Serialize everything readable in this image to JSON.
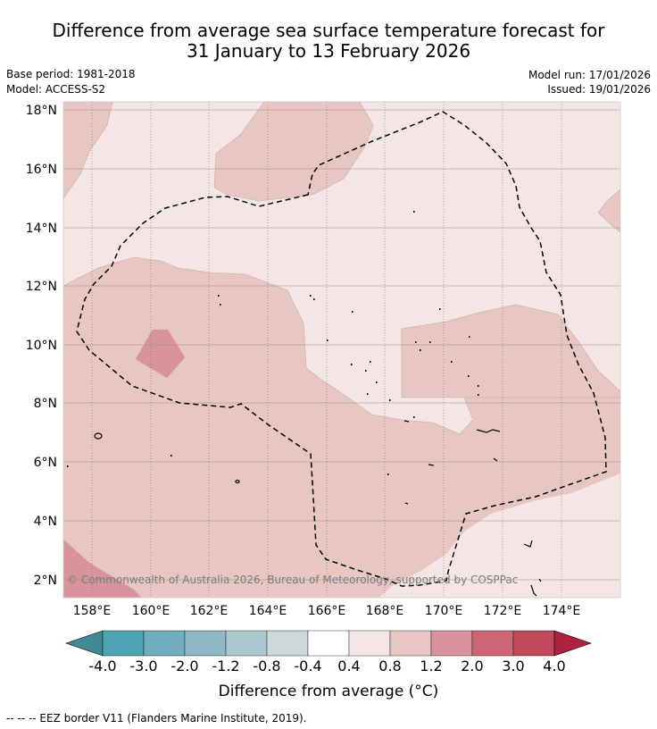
{
  "header": {
    "title_line1": "Difference from average sea surface temperature forecast for",
    "title_line2": "31 January to 13 February 2026",
    "base_period": "Base period: 1981-2018",
    "model": "Model: ACCESS-S2",
    "model_run": "Model run: 17/01/2026",
    "issued": "Issued: 19/01/2026"
  },
  "map": {
    "lat_labels": [
      "18°N",
      "16°N",
      "14°N",
      "12°N",
      "10°N",
      "8°N",
      "6°N",
      "4°N",
      "2°N"
    ],
    "lon_labels": [
      "158°E",
      "160°E",
      "162°E",
      "164°E",
      "166°E",
      "168°E",
      "170°E",
      "172°E",
      "174°E"
    ],
    "copyright": "© Commonwealth of Australia 2026, Bureau of Meteorology, supported by COSPPac",
    "colors": {
      "anom_0_4_0_8": "#f4e6e5",
      "anom_0_8_1_2": "#e8c7c3",
      "anom_1_2_2_0": "#d8949a",
      "eez_line": "#000000"
    }
  },
  "colorbar": {
    "labels": [
      "-4.0",
      "-3.0",
      "-2.0",
      "-1.2",
      "-0.8",
      "-0.4",
      "0.4",
      "0.8",
      "1.2",
      "2.0",
      "3.0",
      "4.0"
    ],
    "colors": [
      "#3e8a95",
      "#4ea3b3",
      "#70adbe",
      "#8fb9c4",
      "#aac8cd",
      "#cdd8db",
      "#ffffff",
      "#f4e6e5",
      "#e8c7c3",
      "#d8949a",
      "#cc6674",
      "#c04a5a",
      "#b1203f"
    ],
    "title": "Difference from average (°C)"
  },
  "footer": {
    "legend_text": "--  --  -- EEZ border V11 (Flanders Marine Institute, 2019)."
  }
}
